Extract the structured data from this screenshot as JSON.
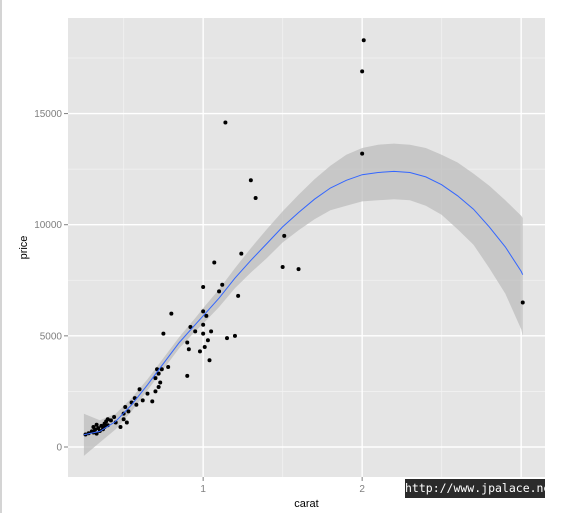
{
  "chart_data": {
    "type": "scatter",
    "title": "",
    "xlabel": "carat",
    "ylabel": "price",
    "xlim": [
      0.15,
      3.15
    ],
    "ylim": [
      -1350,
      19300
    ],
    "x_ticks": [
      {
        "value": 1,
        "label": "1"
      },
      {
        "value": 2,
        "label": "2"
      }
    ],
    "y_ticks": [
      {
        "value": 0,
        "label": "0"
      },
      {
        "value": 5000,
        "label": "5000"
      },
      {
        "value": 10000,
        "label": "10000"
      },
      {
        "value": 15000,
        "label": "15000"
      }
    ],
    "grid": true,
    "legend": "none",
    "colors": {
      "panel": "#e5e5e5",
      "grid_major": "#ffffff",
      "grid_minor": "#f2f2f2",
      "points": "#000000",
      "smooth_line": "#3366ff",
      "ribbon": "#bbbbbb"
    },
    "points": [
      [
        0.26,
        560
      ],
      [
        0.28,
        620
      ],
      [
        0.3,
        700
      ],
      [
        0.31,
        900
      ],
      [
        0.31,
        650
      ],
      [
        0.32,
        780
      ],
      [
        0.33,
        1000
      ],
      [
        0.33,
        600
      ],
      [
        0.34,
        850
      ],
      [
        0.35,
        720
      ],
      [
        0.36,
        950
      ],
      [
        0.37,
        800
      ],
      [
        0.38,
        900
      ],
      [
        0.38,
        1050
      ],
      [
        0.39,
        1150
      ],
      [
        0.4,
        980
      ],
      [
        0.4,
        1250
      ],
      [
        0.42,
        1200
      ],
      [
        0.44,
        1350
      ],
      [
        0.45,
        1100
      ],
      [
        0.48,
        900
      ],
      [
        0.5,
        1250
      ],
      [
        0.5,
        1500
      ],
      [
        0.51,
        1800
      ],
      [
        0.52,
        1100
      ],
      [
        0.53,
        1600
      ],
      [
        0.55,
        2000
      ],
      [
        0.57,
        2200
      ],
      [
        0.58,
        1900
      ],
      [
        0.6,
        2600
      ],
      [
        0.62,
        2100
      ],
      [
        0.65,
        2400
      ],
      [
        0.68,
        2050
      ],
      [
        0.7,
        2500
      ],
      [
        0.7,
        3100
      ],
      [
        0.71,
        3500
      ],
      [
        0.72,
        2700
      ],
      [
        0.72,
        3300
      ],
      [
        0.73,
        2900
      ],
      [
        0.74,
        3500
      ],
      [
        0.75,
        5100
      ],
      [
        0.78,
        3600
      ],
      [
        0.8,
        6000
      ],
      [
        0.9,
        3200
      ],
      [
        0.9,
        4700
      ],
      [
        0.91,
        4400
      ],
      [
        0.92,
        5400
      ],
      [
        0.95,
        5200
      ],
      [
        0.98,
        4300
      ],
      [
        1.0,
        5100
      ],
      [
        1.0,
        5500
      ],
      [
        1.0,
        6100
      ],
      [
        1.0,
        7200
      ],
      [
        1.01,
        4500
      ],
      [
        1.02,
        5900
      ],
      [
        1.03,
        4800
      ],
      [
        1.04,
        3900
      ],
      [
        1.05,
        5200
      ],
      [
        1.07,
        8300
      ],
      [
        1.1,
        7000
      ],
      [
        1.12,
        7300
      ],
      [
        1.14,
        14600
      ],
      [
        1.15,
        4900
      ],
      [
        1.2,
        5000
      ],
      [
        1.22,
        6800
      ],
      [
        1.24,
        8700
      ],
      [
        1.3,
        12000
      ],
      [
        1.33,
        11200
      ],
      [
        1.5,
        8100
      ],
      [
        1.51,
        9500
      ],
      [
        1.6,
        8000
      ],
      [
        2.0,
        13200
      ],
      [
        2.0,
        16900
      ],
      [
        2.01,
        18300
      ],
      [
        3.01,
        6500
      ]
    ],
    "smooth": [
      [
        0.25,
        550
      ],
      [
        0.35,
        700
      ],
      [
        0.45,
        1150
      ],
      [
        0.55,
        1900
      ],
      [
        0.65,
        2800
      ],
      [
        0.75,
        3750
      ],
      [
        0.85,
        4700
      ],
      [
        0.95,
        5500
      ],
      [
        1.0,
        5900
      ],
      [
        1.1,
        6700
      ],
      [
        1.2,
        7600
      ],
      [
        1.3,
        8400
      ],
      [
        1.4,
        9150
      ],
      [
        1.5,
        9900
      ],
      [
        1.6,
        10550
      ],
      [
        1.7,
        11150
      ],
      [
        1.8,
        11650
      ],
      [
        1.9,
        12000
      ],
      [
        2.0,
        12250
      ],
      [
        2.1,
        12350
      ],
      [
        2.2,
        12400
      ],
      [
        2.3,
        12350
      ],
      [
        2.4,
        12150
      ],
      [
        2.5,
        11800
      ],
      [
        2.6,
        11300
      ],
      [
        2.7,
        10700
      ],
      [
        2.8,
        9900
      ],
      [
        2.9,
        9000
      ],
      [
        3.0,
        7900
      ],
      [
        3.01,
        7750
      ]
    ],
    "ribbon_upper": [
      [
        0.25,
        1500
      ],
      [
        0.35,
        1200
      ],
      [
        0.45,
        1500
      ],
      [
        0.55,
        2200
      ],
      [
        0.65,
        3050
      ],
      [
        0.75,
        4000
      ],
      [
        0.85,
        4950
      ],
      [
        0.95,
        5800
      ],
      [
        1.0,
        6250
      ],
      [
        1.1,
        7100
      ],
      [
        1.2,
        8050
      ],
      [
        1.3,
        8950
      ],
      [
        1.4,
        9800
      ],
      [
        1.5,
        10600
      ],
      [
        1.6,
        11350
      ],
      [
        1.7,
        12050
      ],
      [
        1.8,
        12650
      ],
      [
        1.9,
        13150
      ],
      [
        2.0,
        13450
      ],
      [
        2.1,
        13600
      ],
      [
        2.2,
        13650
      ],
      [
        2.3,
        13600
      ],
      [
        2.4,
        13450
      ],
      [
        2.5,
        13150
      ],
      [
        2.6,
        12800
      ],
      [
        2.7,
        12300
      ],
      [
        2.8,
        11750
      ],
      [
        2.9,
        11100
      ],
      [
        3.0,
        10400
      ],
      [
        3.01,
        10300
      ]
    ],
    "ribbon_lower": [
      [
        0.25,
        -400
      ],
      [
        0.35,
        200
      ],
      [
        0.45,
        800
      ],
      [
        0.55,
        1600
      ],
      [
        0.65,
        2550
      ],
      [
        0.75,
        3500
      ],
      [
        0.85,
        4450
      ],
      [
        0.95,
        5200
      ],
      [
        1.0,
        5550
      ],
      [
        1.1,
        6300
      ],
      [
        1.2,
        7150
      ],
      [
        1.3,
        7850
      ],
      [
        1.4,
        8500
      ],
      [
        1.5,
        9200
      ],
      [
        1.6,
        9750
      ],
      [
        1.7,
        10250
      ],
      [
        1.8,
        10650
      ],
      [
        1.9,
        10850
      ],
      [
        2.0,
        11050
      ],
      [
        2.1,
        11100
      ],
      [
        2.2,
        11150
      ],
      [
        2.3,
        11100
      ],
      [
        2.4,
        10850
      ],
      [
        2.5,
        10450
      ],
      [
        2.6,
        9800
      ],
      [
        2.7,
        9100
      ],
      [
        2.8,
        8050
      ],
      [
        2.9,
        6900
      ],
      [
        3.0,
        5300
      ],
      [
        3.01,
        5000
      ]
    ]
  },
  "watermark": {
    "text": "http://www.jpalace.net"
  }
}
